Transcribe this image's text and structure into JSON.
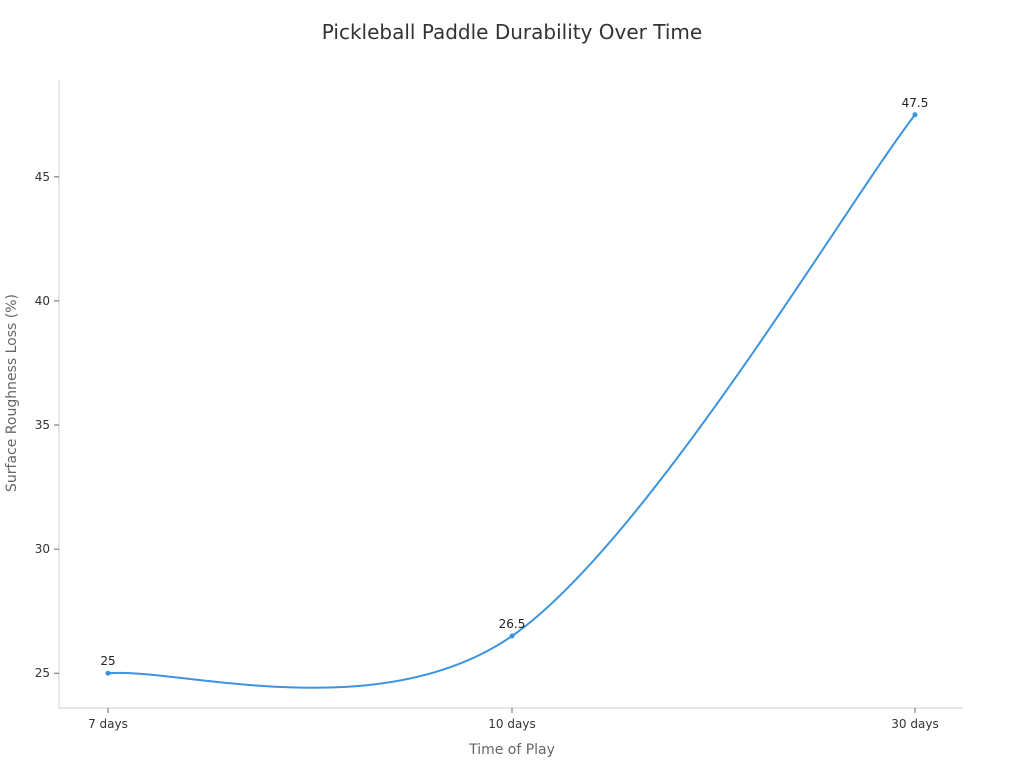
{
  "chart_data": {
    "type": "line",
    "title": "Pickleball Paddle Durability Over Time",
    "xlabel": "Time of Play",
    "ylabel": "Surface Roughness Loss (%)",
    "categories": [
      "7 days",
      "10 days",
      "30 days"
    ],
    "series": [
      {
        "values": [
          25,
          26.5,
          47.5
        ],
        "color": "#3a94e0"
      }
    ],
    "ylim": [
      23.6,
      48.9
    ],
    "yticks": [
      25,
      30,
      35,
      40,
      45
    ],
    "grid": false,
    "curve": "smooth"
  }
}
